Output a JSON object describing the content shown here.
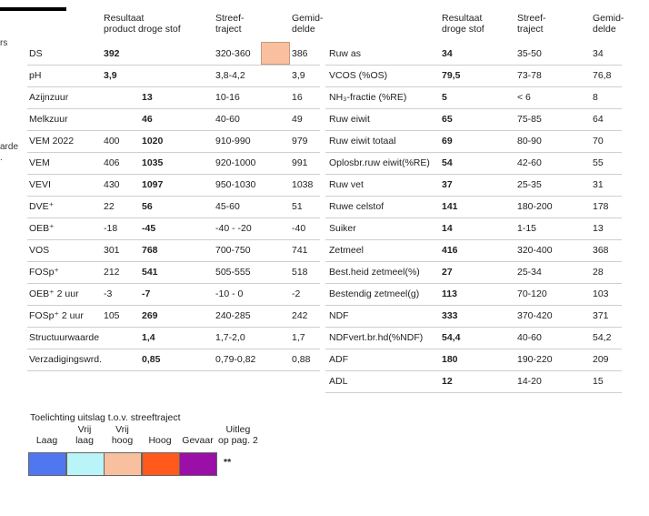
{
  "edge_fragments": [
    "rs",
    "arde",
    "."
  ],
  "left": {
    "headers": {
      "result": "Resultaat",
      "result2": "product droge stof",
      "target": "Streef-",
      "target2": "traject",
      "avg": "Gemid-",
      "avg2": "delde"
    },
    "rows": [
      {
        "label": "DS",
        "prod": "392",
        "ds": "",
        "range": "320-360",
        "avg": "386"
      },
      {
        "label": "pH",
        "prod": "3,9",
        "ds": "",
        "range": "3,8-4,2",
        "avg": "3,9"
      },
      {
        "label": "Azijnzuur",
        "prod": "",
        "ds": "13",
        "range": "10-16",
        "avg": "16"
      },
      {
        "label": "Melkzuur",
        "prod": "",
        "ds": "46",
        "range": "40-60",
        "avg": "49"
      },
      {
        "label": "VEM 2022",
        "prod": "400",
        "ds": "1020",
        "range": "910-990",
        "avg": "979"
      },
      {
        "label": "VEM",
        "prod": "406",
        "ds": "1035",
        "range": "920-1000",
        "avg": "991"
      },
      {
        "label": "VEVI",
        "prod": "430",
        "ds": "1097",
        "range": "950-1030",
        "avg": "1038"
      },
      {
        "label": "DVE⁺",
        "prod": "22",
        "ds": "56",
        "range": "45-60",
        "avg": "51"
      },
      {
        "label": "OEB⁺",
        "prod": "-18",
        "ds": "-45",
        "range": "-40 - -20",
        "avg": "-40"
      },
      {
        "label": "VOS",
        "prod": "301",
        "ds": "768",
        "range": "700-750",
        "avg": "741"
      },
      {
        "label": "FOSp⁺",
        "prod": "212",
        "ds": "541",
        "range": "505-555",
        "avg": "518"
      },
      {
        "label": "OEB⁺ 2 uur",
        "prod": "-3",
        "ds": "-7",
        "range": "-10 - 0",
        "avg": "-2"
      },
      {
        "label": "FOSp⁺ 2 uur",
        "prod": "105",
        "ds": "269",
        "range": "240-285",
        "avg": "242"
      },
      {
        "label": "Structuurwaarde",
        "prod": "",
        "ds": "1,4",
        "range": "1,7-2,0",
        "avg": "1,7"
      },
      {
        "label": "Verzadigingswrd.",
        "prod": "",
        "ds": "0,85",
        "range": "0,79-0,82",
        "avg": "0,88"
      }
    ]
  },
  "right": {
    "headers": {
      "result": "Resultaat",
      "result2": "droge stof",
      "target": "Streef-",
      "target2": "traject",
      "avg": "Gemid-",
      "avg2": "delde"
    },
    "rows": [
      {
        "label": "Ruw as",
        "ds": "34",
        "range": "35-50",
        "avg": "34"
      },
      {
        "label": "VCOS (%OS)",
        "ds": "79,5",
        "range": "73-78",
        "avg": "76,8"
      },
      {
        "label": "NH₃-fractie (%RE)",
        "ds": "5",
        "range": "< 6",
        "avg": "8"
      },
      {
        "label": "Ruw eiwit",
        "ds": "65",
        "range": "75-85",
        "avg": "64"
      },
      {
        "label": "Ruw eiwit totaal",
        "ds": "69",
        "range": "80-90",
        "avg": "70"
      },
      {
        "label": "Oplosbr.ruw eiwit(%RE)",
        "ds": "54",
        "range": "42-60",
        "avg": "55"
      },
      {
        "label": "Ruw vet",
        "ds": "37",
        "range": "25-35",
        "avg": "31"
      },
      {
        "label": "Ruwe celstof",
        "ds": "141",
        "range": "180-200",
        "avg": "178"
      },
      {
        "label": "Suiker",
        "ds": "14",
        "range": "1-15",
        "avg": "13"
      },
      {
        "label": "Zetmeel",
        "ds": "416",
        "range": "320-400",
        "avg": "368"
      },
      {
        "label": "Best.heid zetmeel(%)",
        "ds": "27",
        "range": "25-34",
        "avg": "28"
      },
      {
        "label": "Bestendig zetmeel(g)",
        "ds": "113",
        "range": "70-120",
        "avg": "103"
      },
      {
        "label": "NDF",
        "ds": "333",
        "range": "370-420",
        "avg": "371"
      },
      {
        "label": "NDFvert.br.hd(%NDF)",
        "ds": "54,4",
        "range": "40-60",
        "avg": "54,2"
      },
      {
        "label": "ADF",
        "ds": "180",
        "range": "190-220",
        "avg": "209"
      },
      {
        "label": "ADL",
        "ds": "12",
        "range": "14-20",
        "avg": "15"
      }
    ]
  },
  "legend": {
    "title": "Toelichting uitslag t.o.v. streeftraject",
    "items": [
      {
        "line1": "",
        "line2": "Laag",
        "color": "#4f78f0"
      },
      {
        "line1": "Vrij",
        "line2": "laag",
        "color": "#b8f4f8"
      },
      {
        "line1": "Vrij",
        "line2": "hoog",
        "color": "#f9c0a0"
      },
      {
        "line1": "",
        "line2": "Hoog",
        "color": "#ff5a1c"
      },
      {
        "line1": "",
        "line2": "Gevaar",
        "color": "#9a0fa8"
      }
    ],
    "explain1": "Uitleg",
    "explain2": "op pag. 2",
    "stars": "**"
  },
  "highlight_color": "#f9c0a0"
}
